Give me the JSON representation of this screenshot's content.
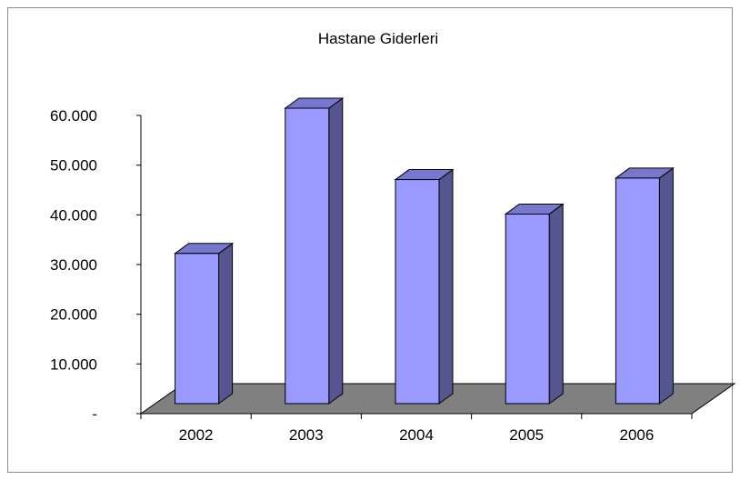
{
  "chart_data": {
    "type": "bar",
    "title": "Hastane Giderleri",
    "xlabel": "",
    "ylabel": "",
    "categories": [
      "2002",
      "2003",
      "2004",
      "2005",
      "2006"
    ],
    "values": [
      30500,
      60000,
      45500,
      38500,
      45800
    ],
    "ylim": [
      0,
      60000
    ],
    "y_ticks": [
      0,
      10000,
      20000,
      30000,
      40000,
      50000,
      60000
    ],
    "y_tick_labels": [
      "-",
      "10.000",
      "20.000",
      "30.000",
      "40.000",
      "50.000",
      "60.000"
    ],
    "three_d": true,
    "grid": false,
    "legend": "none",
    "colors": {
      "bar_front": "#9999ff",
      "bar_side": "#55558f",
      "bar_top": "#7777d0",
      "floor": "#808080",
      "outline": "#000000"
    }
  }
}
